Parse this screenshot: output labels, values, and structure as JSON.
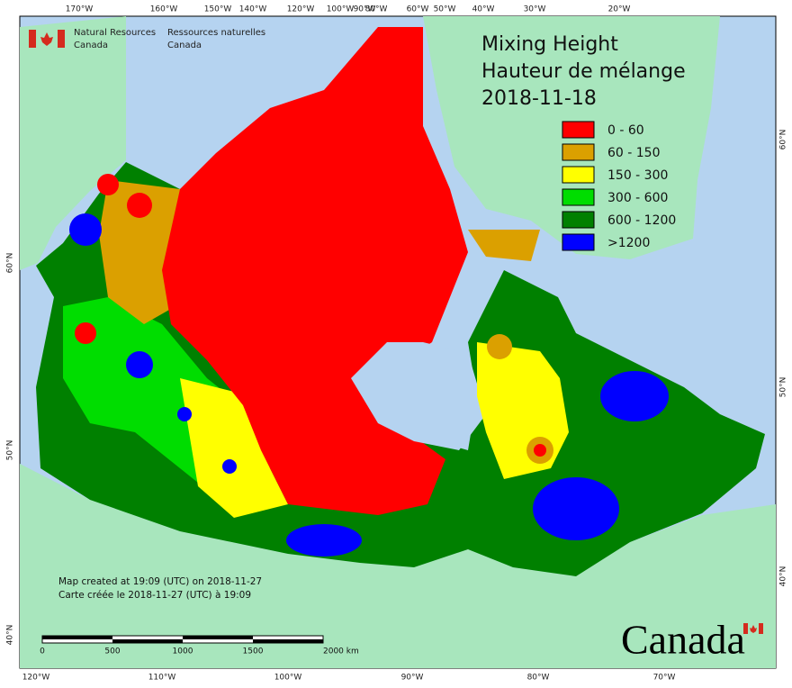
{
  "header": {
    "en_line1": "Natural Resources",
    "en_line2": "Canada",
    "fr_line1": "Ressources naturelles",
    "fr_line2": "Canada"
  },
  "title": {
    "line1": "Mixing Height",
    "line2": "Hauteur de mélange",
    "date": "2018-11-18"
  },
  "legend": [
    {
      "label": "0 - 60",
      "color": "#ff0000"
    },
    {
      "label": "60 - 150",
      "color": "#dba000"
    },
    {
      "label": "150 - 300",
      "color": "#ffff00"
    },
    {
      "label": "300 - 600",
      "color": "#00dd00"
    },
    {
      "label": "600 - 1200",
      "color": "#008000"
    },
    {
      "label": ">1200",
      "color": "#0000ff"
    }
  ],
  "graticule": {
    "top": [
      "170°W",
      "160°W",
      "150°W",
      "140°W",
      "120°W",
      "100°W",
      "90°W",
      "80°W",
      "60°W",
      "50°W",
      "40°W",
      "30°W",
      "20°W"
    ],
    "bottom": [
      "120°W",
      "110°W",
      "100°W",
      "90°W",
      "80°W",
      "70°W"
    ],
    "left": [
      "60°N",
      "50°N",
      "40°N"
    ],
    "right": [
      "60°N",
      "50°N",
      "40°N"
    ]
  },
  "notes": {
    "en": "Map created at 19:09 (UTC) on 2018-11-27",
    "fr": "Carte créée le 2018-11-27 (UTC) à 19:09"
  },
  "scale_bar": [
    "0",
    "500",
    "1000",
    "1500",
    "2000 km"
  ],
  "wordmark": "Canada"
}
